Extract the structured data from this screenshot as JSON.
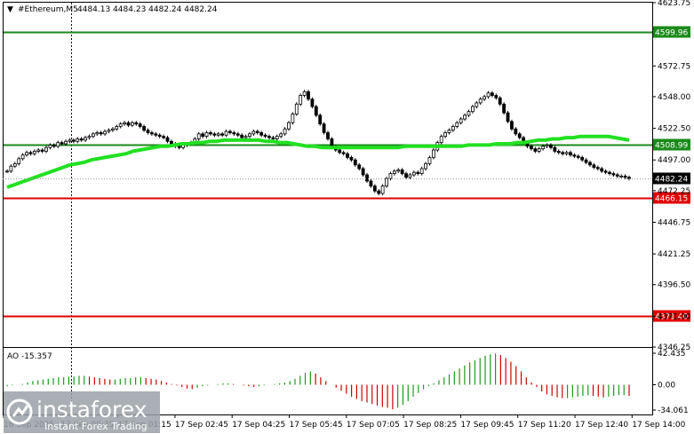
{
  "header": {
    "menu_arrow": "triangle-down-icon",
    "symbol": "#Ethereum,M5",
    "ohlc": "4484.13 4484.23 4482.24 4482.24"
  },
  "price_axis": {
    "ticks": [
      "4623.75",
      "4572.75",
      "4548.00",
      "4522.50",
      "4497.00",
      "4472.25",
      "4446.75",
      "4421.25",
      "4396.50",
      "4371.00",
      "4346.25"
    ]
  },
  "levels": [
    {
      "label": "4599.96",
      "value": 4599.96,
      "color": "#1a8a1a"
    },
    {
      "label": "4508.99",
      "value": 4508.99,
      "color": "#1a8a1a"
    },
    {
      "label": "4466.15",
      "value": 4466.15,
      "color": "#e00000"
    },
    {
      "label": "4371.40",
      "value": 4371.4,
      "color": "#e00000"
    }
  ],
  "current_price": {
    "label": "4482.24",
    "value": 4482.24
  },
  "time_axis": {
    "labels": [
      "16 Sep 2025",
      "17 Sep 00:35",
      "17 Sep 01:15",
      "17 Sep 02:45",
      "17 Sep 04:25",
      "17 Sep 05:45",
      "17 Sep 07:05",
      "17 Sep 08:25",
      "17 Sep 09:45",
      "17 Sep 11:20",
      "17 Sep 12:40",
      "17 Sep 14:00"
    ]
  },
  "indicator": {
    "name": "AO -15.357",
    "ticks": [
      "42.435",
      "0.00",
      "-34.061"
    ],
    "up_color": "#1a9a1a",
    "down_color": "#cc0000"
  },
  "watermark": {
    "brand": "instaforex",
    "tagline": "Instant Forex Trading"
  },
  "chart_data": {
    "type": "candlestick",
    "title": "#Ethereum,M5",
    "ylim": [
      4346.25,
      4623.75
    ],
    "price_series": {
      "name": "#Ethereum,M5",
      "values": [
        4488,
        4492,
        4494,
        4498,
        4501,
        4503,
        4502,
        4504,
        4505,
        4504,
        4507,
        4509,
        4508,
        4511,
        4510,
        4512,
        4513,
        4512,
        4514,
        4513,
        4515,
        4516,
        4518,
        4519,
        4518,
        4520,
        4521,
        4522,
        4524,
        4526,
        4527,
        4525,
        4527,
        4526,
        4524,
        4521,
        4519,
        4518,
        4517,
        4516,
        4515,
        4512,
        4510,
        4508,
        4507,
        4509,
        4510,
        4511,
        4514,
        4518,
        4516,
        4519,
        4518,
        4517,
        4518,
        4517,
        4520,
        4519,
        4518,
        4517,
        4515,
        4516,
        4518,
        4520,
        4519,
        4517,
        4516,
        4515,
        4514,
        4516,
        4518,
        4522,
        4527,
        4534,
        4542,
        4549,
        4552,
        4546,
        4540,
        4533,
        4526,
        4519,
        4514,
        4508,
        4505,
        4503,
        4502,
        4499,
        4497,
        4493,
        4490,
        4485,
        4480,
        4476,
        4472,
        4470,
        4476,
        4482,
        4486,
        4488,
        4489,
        4486,
        4483,
        4485,
        4487,
        4486,
        4490,
        4494,
        4499,
        4505,
        4511,
        4516,
        4519,
        4521,
        4524,
        4527,
        4530,
        4533,
        4536,
        4540,
        4543,
        4546,
        4548,
        4551,
        4549,
        4547,
        4542,
        4535,
        4528,
        4522,
        4518,
        4515,
        4511,
        4508,
        4506,
        4504,
        4506,
        4508,
        4509,
        4507,
        4504,
        4503,
        4502,
        4503,
        4501,
        4500,
        4499,
        4497,
        4495,
        4493,
        4491,
        4490,
        4488,
        4487,
        4486,
        4485,
        4484,
        4484,
        4483,
        4482
      ]
    },
    "moving_average": {
      "name": "MA",
      "values": [
        4475,
        4477,
        4479,
        4481,
        4483,
        4485,
        4487,
        4489,
        4491,
        4493,
        4494,
        4495,
        4497,
        4498,
        4499,
        4500,
        4501,
        4502,
        4504,
        4505,
        4506,
        4507,
        4508,
        4508,
        4509,
        4510,
        4510,
        4511,
        4511,
        4512,
        4512,
        4513,
        4513,
        4513,
        4513,
        4513,
        4513,
        4512,
        4512,
        4511,
        4511,
        4510,
        4509,
        4508,
        4508,
        4507,
        4507,
        4507,
        4507,
        4507,
        4507,
        4507,
        4507,
        4507,
        4507,
        4507,
        4507,
        4508,
        4508,
        4508,
        4508,
        4508,
        4508,
        4508,
        4508,
        4508,
        4509,
        4509,
        4509,
        4509,
        4510,
        4510,
        4510,
        4511,
        4511,
        4512,
        4513,
        4513,
        4514,
        4514,
        4515,
        4515,
        4516,
        4516,
        4516,
        4516,
        4516,
        4515,
        4514,
        4513
      ]
    },
    "ao_histogram": {
      "name": "AO",
      "ylim": [
        -34.061,
        42.435
      ],
      "values": [
        -2,
        -1,
        0,
        1,
        3,
        5,
        6,
        7,
        8,
        9,
        10,
        10,
        11,
        11,
        12,
        12,
        11,
        10,
        9,
        8,
        7,
        7,
        8,
        9,
        9,
        10,
        10,
        9,
        8,
        7,
        5,
        3,
        1,
        -1,
        -3,
        -5,
        -6,
        -4,
        -2,
        -1,
        0,
        1,
        2,
        2,
        1,
        0,
        -1,
        -2,
        -3,
        -2,
        -1,
        0,
        1,
        2,
        3,
        5,
        8,
        12,
        16,
        18,
        15,
        10,
        5,
        0,
        -4,
        -8,
        -12,
        -16,
        -19,
        -22,
        -24,
        -26,
        -28,
        -30,
        -31,
        -33,
        -31,
        -27,
        -22,
        -16,
        -11,
        -6,
        -2,
        2,
        6,
        10,
        14,
        18,
        22,
        26,
        30,
        33,
        36,
        39,
        41,
        42,
        40,
        36,
        31,
        25,
        18,
        10,
        3,
        -3,
        -9,
        -13,
        -15,
        -17,
        -18,
        -18,
        -17,
        -16,
        -15,
        -14,
        -15,
        -16,
        -17,
        -16,
        -15,
        -14,
        -14,
        -15
      ]
    },
    "horizontal_levels": [
      4599.96,
      4508.99,
      4466.15,
      4371.4
    ]
  }
}
